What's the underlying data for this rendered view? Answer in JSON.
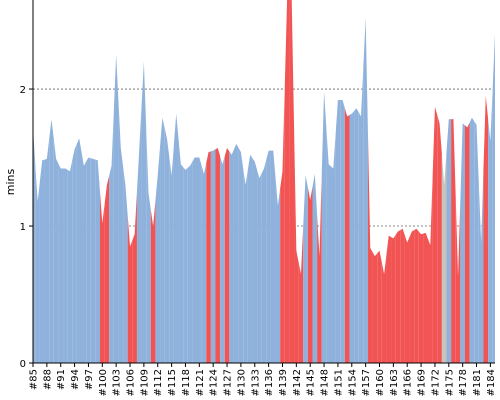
{
  "chart_data": {
    "type": "area",
    "ylabel": "mins",
    "xlabel": "",
    "title": "",
    "ylim": [
      0,
      2.65
    ],
    "y_ticks": [
      0,
      1,
      2
    ],
    "grid": "horizontal-dashed",
    "legend": "none",
    "x_start": 85,
    "x_tick_labels": [
      "#85",
      "#88",
      "#91",
      "#94",
      "#97",
      "#100",
      "#103",
      "#106",
      "#109",
      "#112",
      "#115",
      "#118",
      "#121",
      "#124",
      "#127",
      "#130",
      "#133",
      "#136",
      "#139",
      "#142",
      "#145",
      "#148",
      "#151",
      "#154",
      "#157",
      "#160",
      "#163",
      "#166",
      "#169",
      "#172",
      "#175",
      "#178",
      "#181",
      "#184"
    ],
    "values": [
      1.72,
      1.18,
      1.48,
      1.49,
      1.78,
      1.49,
      1.42,
      1.42,
      1.4,
      1.56,
      1.64,
      1.44,
      1.5,
      1.49,
      1.48,
      1.02,
      1.3,
      1.44,
      2.25,
      1.57,
      1.3,
      0.85,
      0.94,
      1.56,
      2.2,
      1.24,
      1.0,
      1.37,
      1.79,
      1.64,
      1.37,
      1.82,
      1.45,
      1.41,
      1.44,
      1.5,
      1.5,
      1.38,
      1.54,
      1.55,
      1.57,
      1.45,
      1.57,
      1.52,
      1.6,
      1.54,
      1.3,
      1.52,
      1.47,
      1.35,
      1.42,
      1.55,
      1.55,
      1.15,
      1.4,
      2.65,
      2.65,
      0.82,
      0.65,
      1.37,
      1.19,
      1.38,
      0.78,
      1.98,
      1.45,
      1.42,
      1.92,
      1.92,
      1.8,
      1.82,
      1.86,
      1.8,
      2.52,
      0.84,
      0.78,
      0.82,
      0.65,
      0.93,
      0.91,
      0.96,
      0.98,
      0.88,
      0.96,
      0.98,
      0.94,
      0.95,
      0.86,
      1.87,
      1.75,
      1.3,
      1.78,
      1.78,
      0.63,
      1.75,
      1.72,
      1.79,
      1.74,
      0.88,
      1.95,
      1.62,
      2.4
    ],
    "status": [
      "ok",
      "ok",
      "ok",
      "ok",
      "ok",
      "ok",
      "ok",
      "ok",
      "ok",
      "ok",
      "ok",
      "ok",
      "ok",
      "ok",
      "ok",
      "fail",
      "fail",
      "ok",
      "ok",
      "ok",
      "ok",
      "fail",
      "fail",
      "ok",
      "ok",
      "ok",
      "fail",
      "ok",
      "ok",
      "ok",
      "ok",
      "ok",
      "ok",
      "ok",
      "ok",
      "ok",
      "ok",
      "ok",
      "fail",
      "ok",
      "fail",
      "ok",
      "fail",
      "ok",
      "ok",
      "ok",
      "ok",
      "ok",
      "ok",
      "ok",
      "ok",
      "ok",
      "ok",
      "ok",
      "fail",
      "fail",
      "fail",
      "fail",
      "fail",
      "ok",
      "fail",
      "ok",
      "fail",
      "ok",
      "ok",
      "ok",
      "ok",
      "ok",
      "fail",
      "ok",
      "ok",
      "ok",
      "ok",
      "fail",
      "fail",
      "fail",
      "fail",
      "fail",
      "fail",
      "fail",
      "fail",
      "fail",
      "fail",
      "fail",
      "fail",
      "fail",
      "fail",
      "fail",
      "fail",
      "aborted",
      "ok",
      "fail",
      "fail",
      "ok",
      "fail",
      "ok",
      "ok",
      "ok",
      "fail",
      "ok",
      "ok"
    ],
    "colors": {
      "ok": "#8fb2dc",
      "fail": "#f25454",
      "aborted": "#c8c4bc"
    }
  }
}
